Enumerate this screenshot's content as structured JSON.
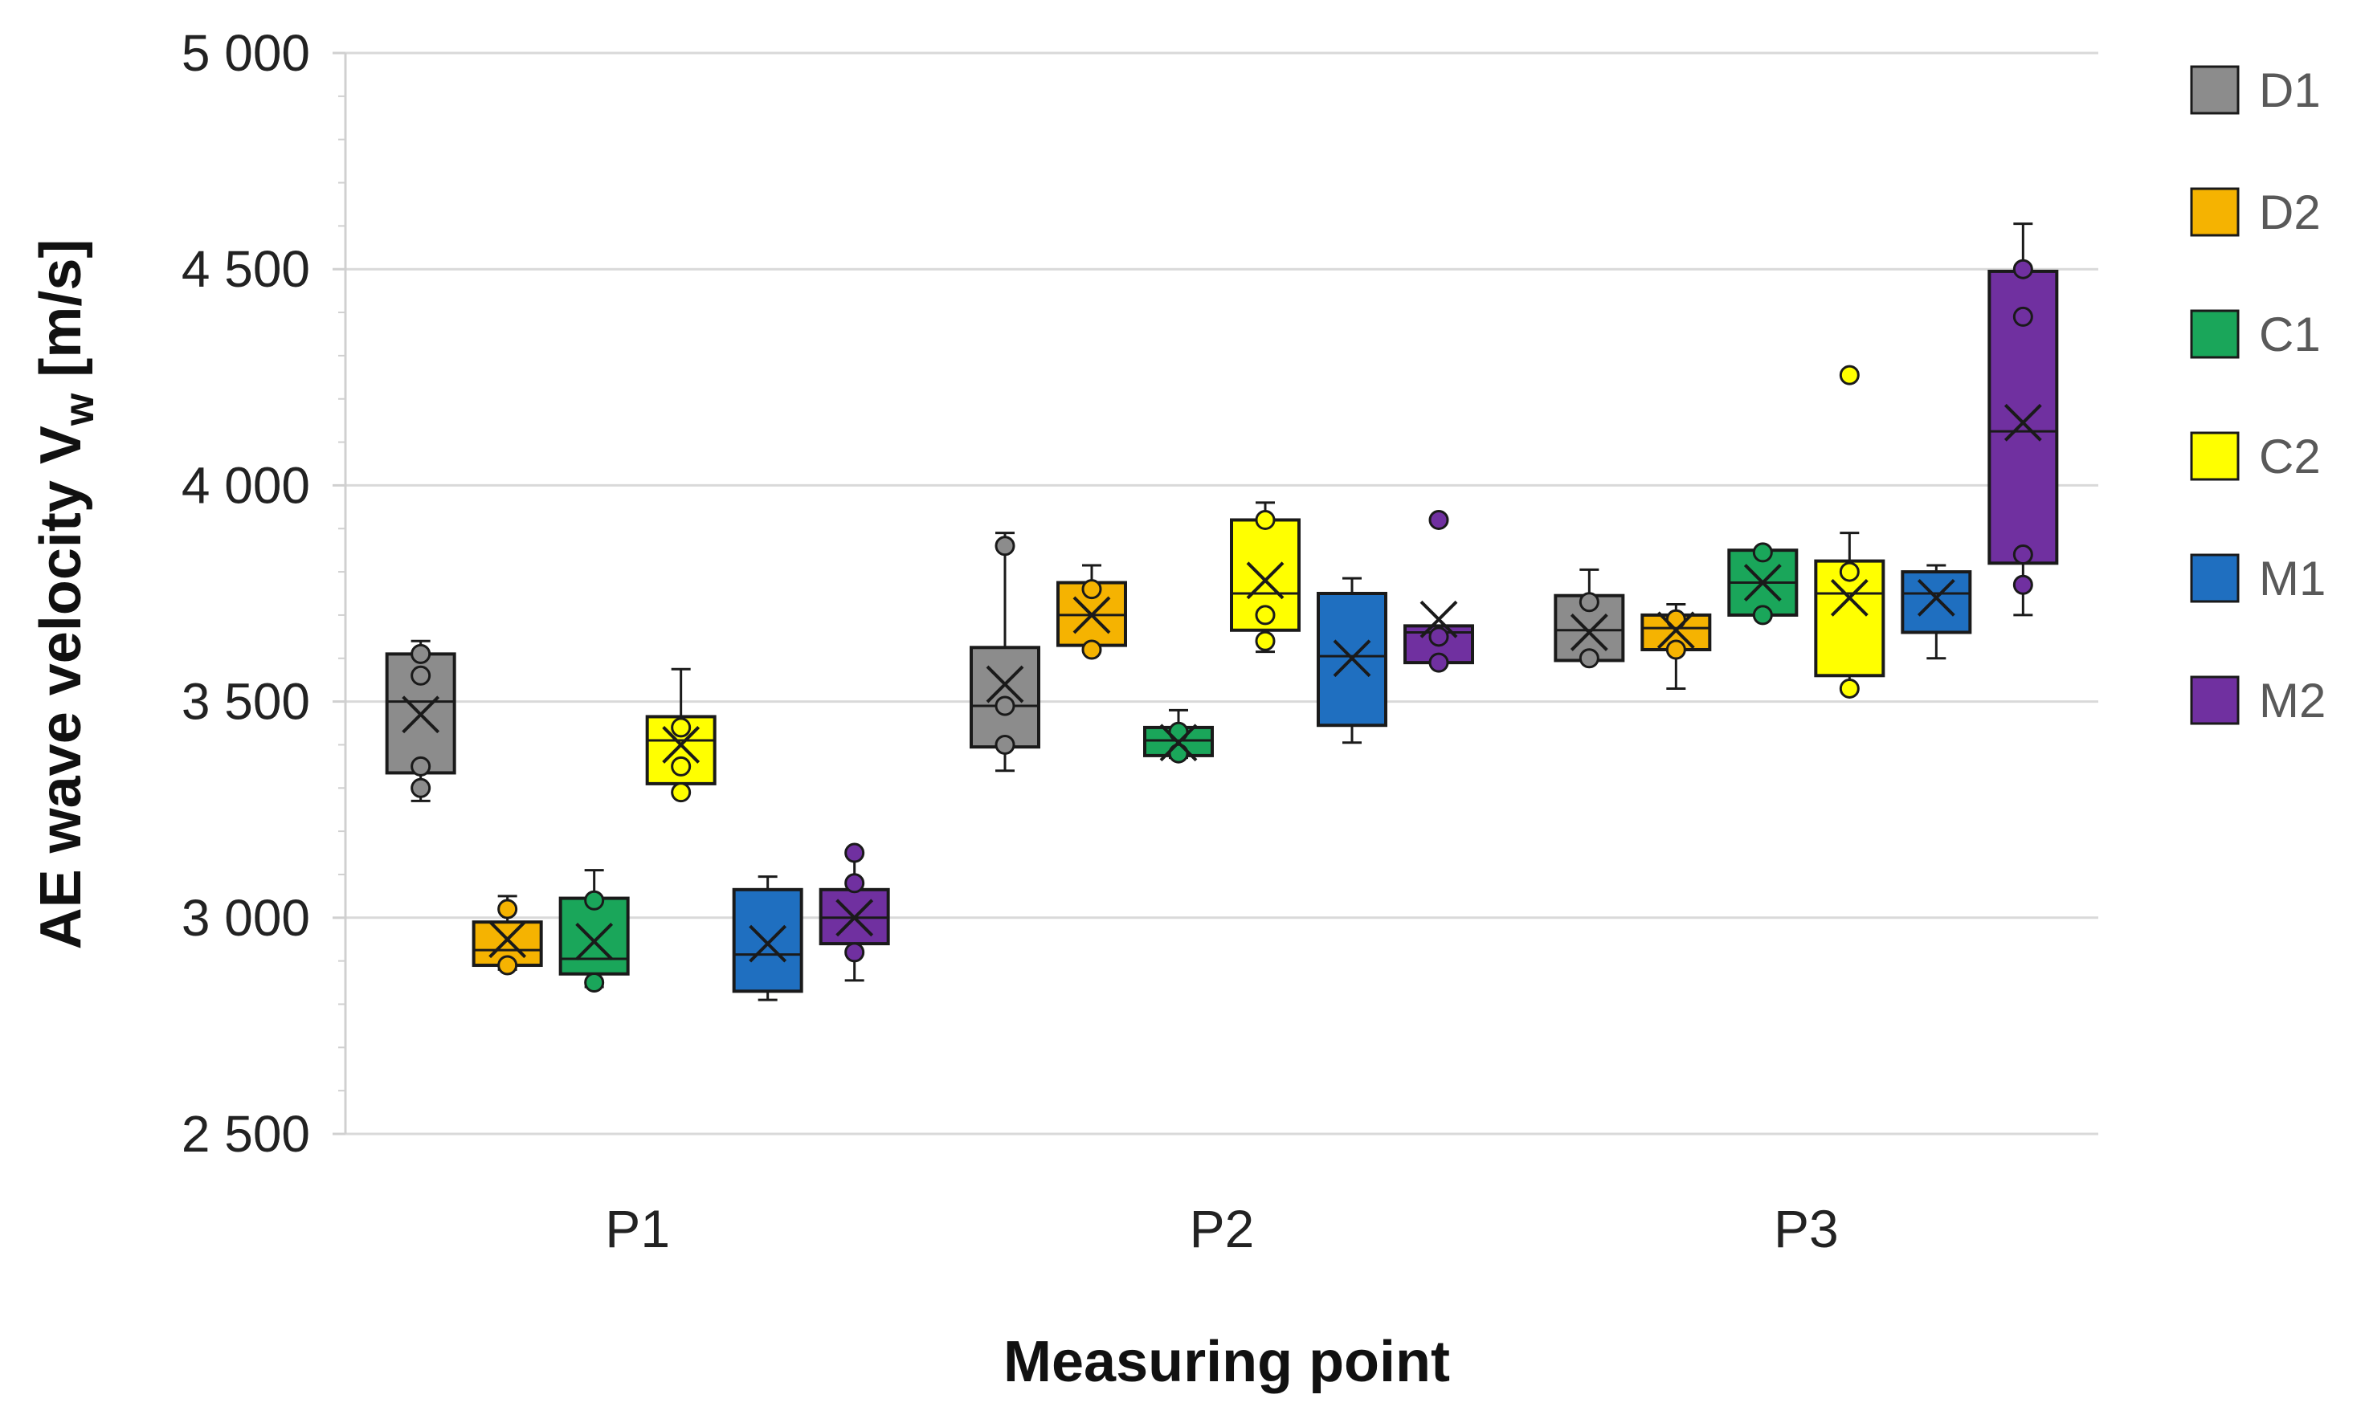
{
  "chart_data": {
    "type": "box",
    "title": "",
    "xlabel": "Measuring point",
    "ylabel": "AE wave velocity V",
    "ylabel_subscript": "w",
    "ylabel_unit": "[m/s]",
    "ylim": [
      2500,
      5000
    ],
    "yticks": [
      2500,
      3000,
      3500,
      4000,
      4500,
      5000
    ],
    "ytick_labels": [
      "2 500",
      "3 000",
      "3 500",
      "4 000",
      "4 500",
      "5 000"
    ],
    "grid": true,
    "legend_position": "right",
    "categories": [
      "P1",
      "P2",
      "P3"
    ],
    "series": [
      {
        "name": "D1",
        "color": "#8c8c8c",
        "boxes": [
          {
            "category": "P1",
            "min": 3270,
            "q1": 3335,
            "median": 3500,
            "q3": 3610,
            "max": 3640,
            "mean": 3470,
            "points": [
              3300,
              3350,
              3560,
              3610
            ]
          },
          {
            "category": "P2",
            "min": 3340,
            "q1": 3395,
            "median": 3490,
            "q3": 3625,
            "max": 3890,
            "mean": 3540,
            "points": [
              3400,
              3490,
              3860
            ]
          },
          {
            "category": "P3",
            "min": 3595,
            "q1": 3595,
            "median": 3665,
            "q3": 3745,
            "max": 3805,
            "mean": 3660,
            "points": [
              3600,
              3730
            ]
          }
        ]
      },
      {
        "name": "D2",
        "color": "#f5b301",
        "boxes": [
          {
            "category": "P1",
            "min": 2880,
            "q1": 2890,
            "median": 2925,
            "q3": 2990,
            "max": 3050,
            "mean": 2950,
            "points": [
              2890,
              3020
            ]
          },
          {
            "category": "P2",
            "min": 3615,
            "q1": 3630,
            "median": 3700,
            "q3": 3775,
            "max": 3815,
            "mean": 3700,
            "points": [
              3620,
              3760
            ]
          },
          {
            "category": "P3",
            "min": 3530,
            "q1": 3620,
            "median": 3670,
            "q3": 3700,
            "max": 3725,
            "mean": 3665,
            "points": [
              3620,
              3690
            ]
          }
        ]
      },
      {
        "name": "C1",
        "color": "#1aa65a",
        "boxes": [
          {
            "category": "P1",
            "min": 2840,
            "q1": 2870,
            "median": 2905,
            "q3": 3045,
            "max": 3110,
            "mean": 2945,
            "points": [
              2850,
              3040
            ]
          },
          {
            "category": "P2",
            "min": 3370,
            "q1": 3375,
            "median": 3410,
            "q3": 3440,
            "max": 3480,
            "mean": 3405,
            "points": [
              3380,
              3430
            ]
          },
          {
            "category": "P3",
            "min": 3700,
            "q1": 3700,
            "median": 3775,
            "q3": 3850,
            "max": 3850,
            "mean": 3775,
            "points": [
              3700,
              3845
            ]
          }
        ]
      },
      {
        "name": "C2",
        "color": "#ffff00",
        "boxes": [
          {
            "category": "P1",
            "min": 3290,
            "q1": 3310,
            "median": 3410,
            "q3": 3465,
            "max": 3575,
            "mean": 3400,
            "points": [
              3290,
              3350,
              3440
            ]
          },
          {
            "category": "P2",
            "min": 3615,
            "q1": 3665,
            "median": 3750,
            "q3": 3920,
            "max": 3960,
            "mean": 3780,
            "points": [
              3640,
              3700,
              3920
            ]
          },
          {
            "category": "P3",
            "min": 3530,
            "q1": 3560,
            "median": 3750,
            "q3": 3825,
            "max": 3890,
            "mean": 3740,
            "points": [
              3530,
              3800,
              4255
            ]
          }
        ]
      },
      {
        "name": "M1",
        "color": "#1f6fc0",
        "boxes": [
          {
            "category": "P1",
            "min": 2810,
            "q1": 2830,
            "median": 2915,
            "q3": 3065,
            "max": 3095,
            "mean": 2940,
            "points": []
          },
          {
            "category": "P2",
            "min": 3405,
            "q1": 3445,
            "median": 3605,
            "q3": 3750,
            "max": 3785,
            "mean": 3600,
            "points": []
          },
          {
            "category": "P3",
            "min": 3600,
            "q1": 3660,
            "median": 3750,
            "q3": 3800,
            "max": 3815,
            "mean": 3740,
            "points": []
          }
        ]
      },
      {
        "name": "M2",
        "color": "#7030a0",
        "boxes": [
          {
            "category": "P1",
            "min": 2855,
            "q1": 2940,
            "median": 3000,
            "q3": 3065,
            "max": 3150,
            "mean": 3000,
            "points": [
              2920,
              3080,
              3150
            ]
          },
          {
            "category": "P2",
            "min": 3590,
            "q1": 3590,
            "median": 3660,
            "q3": 3675,
            "max": 3675,
            "mean": 3690,
            "points": [
              3590,
              3650,
              3920
            ]
          },
          {
            "category": "P3",
            "min": 3700,
            "q1": 3820,
            "median": 4125,
            "q3": 4495,
            "max": 4605,
            "mean": 4145,
            "points": [
              3770,
              3840,
              4390,
              4500
            ]
          }
        ]
      }
    ]
  }
}
